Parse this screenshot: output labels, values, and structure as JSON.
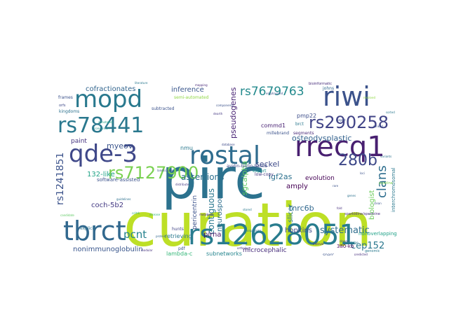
{
  "cloud": {
    "words": [
      {
        "text": "curation",
        "weight": 1.0,
        "color": "#bddf26"
      },
      {
        "text": "pirc",
        "weight": 0.9,
        "color": "#2c728e"
      },
      {
        "text": "rs12628051",
        "weight": 0.55,
        "color": "#287c8e"
      },
      {
        "text": "rostal",
        "weight": 0.55,
        "color": "#2f6c8e"
      },
      {
        "text": "rrecq1",
        "weight": 0.55,
        "color": "#481f70"
      },
      {
        "text": "qde-3",
        "weight": 0.5,
        "color": "#3f4889"
      },
      {
        "text": "tbrct",
        "weight": 0.5,
        "color": "#31688e"
      },
      {
        "text": "mopd",
        "weight": 0.45,
        "color": "#29798e"
      },
      {
        "text": "riwi",
        "weight": 0.45,
        "color": "#3b528b"
      },
      {
        "text": "rs78441",
        "weight": 0.4,
        "color": "#2a788e"
      },
      {
        "text": "rs290258",
        "weight": 0.32,
        "color": "#414487"
      },
      {
        "text": "rs7127900",
        "weight": 0.32,
        "color": "#7ad151"
      },
      {
        "text": "280b",
        "weight": 0.3,
        "color": "#3e4989"
      },
      {
        "text": "clans",
        "weight": 0.22,
        "color": "#2e6e8e"
      },
      {
        "text": "rs7679763",
        "weight": 0.18,
        "color": "#238a8d"
      },
      {
        "text": "systematic",
        "weight": 0.18,
        "color": "#2e6d8e"
      },
      {
        "text": "cep152",
        "weight": 0.17,
        "color": "#2a778e"
      },
      {
        "text": "rs1241851",
        "weight": 0.16,
        "color": "#3b528b"
      },
      {
        "text": "pcnt",
        "weight": 0.16,
        "color": "#26828e"
      },
      {
        "text": "assertions",
        "weight": 0.15,
        "color": "#2d708e"
      },
      {
        "text": "cofractionates",
        "weight": 0.14,
        "color": "#32658e"
      },
      {
        "text": "inference",
        "weight": 0.14,
        "color": "#39568c"
      },
      {
        "text": "pseudogenes",
        "weight": 0.13,
        "color": "#482374"
      },
      {
        "text": "sgcalpha",
        "weight": 0.12,
        "color": "#5ec962"
      },
      {
        "text": "osteodysplastic",
        "weight": 0.13,
        "color": "#33628d"
      },
      {
        "text": "igf2as",
        "weight": 0.13,
        "color": "#2c718e"
      },
      {
        "text": "seckel",
        "weight": 0.13,
        "color": "#3e4a89"
      },
      {
        "text": "myeov",
        "weight": 0.12,
        "color": "#3a548c"
      },
      {
        "text": "132-like",
        "weight": 0.12,
        "color": "#20a386"
      },
      {
        "text": "hopkins",
        "weight": 0.12,
        "color": "#3e4a89"
      },
      {
        "text": "contiguous",
        "weight": 0.13,
        "color": "#2a778e"
      },
      {
        "text": "tnrc6b",
        "weight": 0.12,
        "color": "#31688e"
      },
      {
        "text": "neurospora",
        "weight": 0.11,
        "color": "#2e6f8e"
      },
      {
        "text": "biologist",
        "weight": 0.11,
        "color": "#6ccd5a"
      },
      {
        "text": "amply",
        "weight": 0.11,
        "color": "#440154"
      },
      {
        "text": "slicer",
        "weight": 0.11,
        "color": "#2a788e"
      },
      {
        "text": "coch-5b2",
        "weight": 0.11,
        "color": "#443a83"
      },
      {
        "text": "pirna",
        "weight": 0.1,
        "color": "#481467"
      },
      {
        "text": "nonimmunoglobulin",
        "weight": 0.1,
        "color": "#39568c"
      },
      {
        "text": "microcephalic",
        "weight": 0.1,
        "color": "#472d7b"
      },
      {
        "text": "subnetworks",
        "weight": 0.09,
        "color": "#25858e"
      },
      {
        "text": "lambda-c",
        "weight": 0.09,
        "color": "#35b779"
      },
      {
        "text": "interchromosomal",
        "weight": 0.09,
        "color": "#2a788e"
      },
      {
        "text": "pmp22",
        "weight": 0.09,
        "color": "#3d4e8a"
      },
      {
        "text": "commd1",
        "weight": 0.09,
        "color": "#482173"
      },
      {
        "text": "pericentrin",
        "weight": 0.09,
        "color": "#3b528b"
      },
      {
        "text": "evolution",
        "weight": 0.09,
        "color": "#440154"
      },
      {
        "text": "paint",
        "weight": 0.08,
        "color": "#463480"
      },
      {
        "text": "software-assisted",
        "weight": 0.07,
        "color": "#3b528b"
      },
      {
        "text": "retrieving",
        "weight": 0.07,
        "color": "#2a788e"
      },
      {
        "text": "380-kb",
        "weight": 0.07,
        "color": "#440154"
      },
      {
        "text": "sparc",
        "weight": 0.06,
        "color": "#3b528b"
      },
      {
        "text": "expert",
        "weight": 0.06,
        "color": "#21918c"
      },
      {
        "text": "avidin-biotin-based",
        "weight": 0.06,
        "color": "#3e4a89"
      },
      {
        "text": "hunts",
        "weight": 0.06,
        "color": "#414487"
      },
      {
        "text": "explicit",
        "weight": 0.06,
        "color": "#2c728e"
      },
      {
        "text": "nonoverlapping",
        "weight": 0.06,
        "color": "#1fa187"
      },
      {
        "text": "sparkidine/spermine",
        "weight": 0.05,
        "color": "#472f7d"
      },
      {
        "text": "millebrand",
        "weight": 0.05,
        "color": "#3b528b"
      },
      {
        "text": "brct",
        "weight": 0.05,
        "color": "#2a788e"
      },
      {
        "text": "segments",
        "weight": 0.05,
        "color": "#482878"
      },
      {
        "text": "low-copy",
        "weight": 0.05,
        "color": "#443983"
      },
      {
        "text": "johns",
        "weight": 0.05,
        "color": "#31688e"
      },
      {
        "text": "subtracted",
        "weight": 0.05,
        "color": "#3b528b"
      },
      {
        "text": "semi-automated",
        "weight": 0.05,
        "color": "#8fd744"
      },
      {
        "text": "modular",
        "weight": 0.04,
        "color": "#46327e"
      },
      {
        "text": "orthology",
        "weight": 0.04,
        "color": "#472f7d"
      },
      {
        "text": "genomic",
        "weight": 0.04,
        "color": "#2a788e"
      },
      {
        "text": "kingdoms",
        "weight": 0.05,
        "color": "#2c718e"
      },
      {
        "text": "frames",
        "weight": 0.04,
        "color": "#3b528b"
      },
      {
        "text": "orfs",
        "weight": 0.04,
        "color": "#3e4a89"
      },
      {
        "text": "bioinformatic",
        "weight": 0.04,
        "color": "#472c7a"
      },
      {
        "text": "clean",
        "weight": 0.04,
        "color": "#3b528b"
      },
      {
        "text": "ccitrk",
        "weight": 0.04,
        "color": "#29af7f"
      },
      {
        "text": "dearth",
        "weight": 0.04,
        "color": "#453882"
      },
      {
        "text": "stored",
        "weight": 0.04,
        "color": "#2a788e"
      },
      {
        "text": "largest",
        "weight": 0.04,
        "color": "#3b528b"
      },
      {
        "text": "pipeline",
        "weight": 0.04,
        "color": "#7ad151"
      },
      {
        "text": "nmu",
        "weight": 0.04,
        "color": "#2a788e"
      },
      {
        "text": "pdf",
        "weight": 0.04,
        "color": "#3b528b"
      },
      {
        "text": "fold",
        "weight": 0.03,
        "color": "#472f7d"
      },
      {
        "text": "genes",
        "weight": 0.03,
        "color": "#2c728e"
      },
      {
        "text": "rare",
        "weight": 0.03,
        "color": "#3b528b"
      },
      {
        "text": "disease",
        "weight": 0.03,
        "color": "#35b779"
      },
      {
        "text": "mutations",
        "weight": 0.03,
        "color": "#482374"
      },
      {
        "text": "protein",
        "weight": 0.03,
        "color": "#31688e"
      },
      {
        "text": "database",
        "weight": 0.03,
        "color": "#3e4a89"
      },
      {
        "text": "annotated",
        "weight": 0.03,
        "color": "#20a386"
      },
      {
        "text": "literature",
        "weight": 0.03,
        "color": "#2a788e"
      },
      {
        "text": "ranked",
        "weight": 0.03,
        "color": "#3b528b"
      },
      {
        "text": "predicted",
        "weight": 0.03,
        "color": "#472f7d"
      },
      {
        "text": "variants",
        "weight": 0.03,
        "color": "#2c728e"
      },
      {
        "text": "candidate",
        "weight": 0.03,
        "color": "#5ec962"
      },
      {
        "text": "loci",
        "weight": 0.03,
        "color": "#3b528b"
      },
      {
        "text": "mapping",
        "weight": 0.03,
        "color": "#482878"
      },
      {
        "text": "knowledge",
        "weight": 0.03,
        "color": "#2a788e"
      },
      {
        "text": "landscapes",
        "weight": 0.03,
        "color": "#3b528b"
      },
      {
        "text": "distribute",
        "weight": 0.03,
        "color": "#443983"
      },
      {
        "text": "guidelines",
        "weight": 0.03,
        "color": "#2c718e"
      },
      {
        "text": "emphasized",
        "weight": 0.03,
        "color": "#3b528b"
      },
      {
        "text": "conversion",
        "weight": 0.03,
        "color": "#21918c"
      },
      {
        "text": "interval",
        "weight": 0.03,
        "color": "#472c7a"
      },
      {
        "text": "components",
        "weight": 0.03,
        "color": "#3b528b"
      },
      {
        "text": "sorted",
        "weight": 0.03,
        "color": "#2a788e"
      },
      {
        "text": "clones",
        "weight": 0.03,
        "color": "#3e4a89"
      },
      {
        "text": "organisms",
        "weight": 0.03,
        "color": "#2c728e"
      },
      {
        "text": "resolved",
        "weight": 0.03,
        "color": "#8fd744"
      }
    ]
  }
}
